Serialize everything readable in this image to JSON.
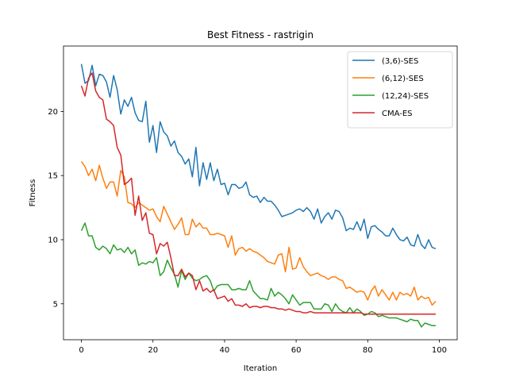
{
  "chart_data": {
    "type": "line",
    "title": "Best Fitness - rastrigin",
    "xlabel": "Iteration",
    "ylabel": "Fitness",
    "xlim": [
      -5,
      105
    ],
    "ylim": [
      2.2,
      25.1
    ],
    "xticks": [
      0,
      20,
      40,
      60,
      80,
      100
    ],
    "yticks": [
      5,
      10,
      15,
      20
    ],
    "grid": false,
    "legend_position": "upper right",
    "series": [
      {
        "name": "(3,6)-SES",
        "color": "#1f77b4",
        "values": [
          23.7,
          22.2,
          22.4,
          23.6,
          22.0,
          22.9,
          22.8,
          22.3,
          21.1,
          22.8,
          21.7,
          19.8,
          20.9,
          20.4,
          21.1,
          19.9,
          19.3,
          19.2,
          20.8,
          17.6,
          18.9,
          16.8,
          19.2,
          18.4,
          18.1,
          17.3,
          17.7,
          16.8,
          16.5,
          15.9,
          16.3,
          14.9,
          17.2,
          14.2,
          16.0,
          14.7,
          16.0,
          14.6,
          15.5,
          14.3,
          14.4,
          13.5,
          14.3,
          14.3,
          14.0,
          14.1,
          14.5,
          13.5,
          13.3,
          13.4,
          12.9,
          13.3,
          13.0,
          13.0,
          12.7,
          12.3,
          11.8,
          11.9,
          12.0,
          12.1,
          12.3,
          12.4,
          12.2,
          12.5,
          12.2,
          11.6,
          12.4,
          11.3,
          11.8,
          12.1,
          11.6,
          12.3,
          12.2,
          11.7,
          10.7,
          10.9,
          10.8,
          11.4,
          10.7,
          11.6,
          10.1,
          11.0,
          11.1,
          10.8,
          10.6,
          10.3,
          10.3,
          10.9,
          10.4,
          10.0,
          9.9,
          10.2,
          9.6,
          9.5,
          10.4,
          9.6,
          9.3,
          10.0,
          9.4,
          9.3
        ]
      },
      {
        "name": "(6,12)-SES",
        "color": "#ff7f0e",
        "values": [
          16.1,
          15.7,
          15.0,
          15.5,
          14.6,
          15.8,
          14.8,
          14.0,
          14.5,
          14.5,
          13.4,
          15.4,
          14.9,
          12.9,
          12.8,
          12.5,
          12.9,
          12.7,
          12.5,
          12.3,
          12.4,
          11.8,
          11.4,
          12.6,
          12.0,
          11.4,
          10.8,
          11.2,
          11.7,
          10.4,
          10.4,
          11.6,
          11.0,
          11.3,
          10.9,
          10.9,
          10.4,
          10.4,
          10.5,
          10.4,
          10.3,
          9.4,
          10.3,
          8.8,
          9.3,
          9.4,
          9.1,
          9.3,
          9.1,
          9.0,
          8.8,
          8.6,
          8.3,
          8.2,
          8.1,
          8.8,
          8.9,
          7.5,
          9.4,
          7.7,
          7.8,
          8.6,
          7.9,
          7.5,
          7.2,
          7.3,
          7.4,
          7.2,
          7.1,
          6.9,
          7.1,
          7.1,
          6.9,
          6.8,
          6.2,
          6.3,
          6.1,
          5.9,
          6.0,
          5.9,
          5.3,
          6.0,
          6.4,
          5.6,
          6.1,
          5.7,
          5.3,
          5.9,
          5.3,
          5.9,
          5.7,
          5.8,
          5.6,
          6.3,
          5.3,
          5.6,
          5.4,
          5.5,
          4.9,
          5.2
        ]
      },
      {
        "name": "(12,24)-SES",
        "color": "#2ca02c",
        "values": [
          10.7,
          11.3,
          10.3,
          10.3,
          9.4,
          9.2,
          9.5,
          9.3,
          8.9,
          9.6,
          9.2,
          9.3,
          9.0,
          9.4,
          8.9,
          9.2,
          8.0,
          8.2,
          8.1,
          8.3,
          8.2,
          8.6,
          7.2,
          7.5,
          8.4,
          7.8,
          7.3,
          6.3,
          7.6,
          6.9,
          7.4,
          7.0,
          6.8,
          6.9,
          7.1,
          7.2,
          6.8,
          6.0,
          6.4,
          6.5,
          6.5,
          6.5,
          6.1,
          6.1,
          6.2,
          6.1,
          6.1,
          6.8,
          6.0,
          5.7,
          5.4,
          5.4,
          5.3,
          6.2,
          5.6,
          5.9,
          5.7,
          5.4,
          5.0,
          5.7,
          5.3,
          4.9,
          5.1,
          5.1,
          5.1,
          4.6,
          4.6,
          4.6,
          5.0,
          4.9,
          4.4,
          5.0,
          4.6,
          4.4,
          4.3,
          4.7,
          4.3,
          4.6,
          4.4,
          4.1,
          4.2,
          4.4,
          4.3,
          4.0,
          4.1,
          4.0,
          3.9,
          3.9,
          3.9,
          3.8,
          3.7,
          3.6,
          3.8,
          3.7,
          3.7,
          3.2,
          3.5,
          3.4,
          3.3,
          3.3
        ]
      },
      {
        "name": "CMA-ES",
        "color": "#d62728",
        "values": [
          22.0,
          21.2,
          22.6,
          23.0,
          21.6,
          21.1,
          20.9,
          19.4,
          19.2,
          18.9,
          17.2,
          16.6,
          14.3,
          14.5,
          14.8,
          11.9,
          13.4,
          11.5,
          12.1,
          10.5,
          10.4,
          8.9,
          9.7,
          9.5,
          9.8,
          8.6,
          7.2,
          7.2,
          7.7,
          7.1,
          7.4,
          7.2,
          6.1,
          6.8,
          6.0,
          6.2,
          5.9,
          6.1,
          5.4,
          5.5,
          5.6,
          5.2,
          5.4,
          4.9,
          4.9,
          4.8,
          5.0,
          4.7,
          4.8,
          4.8,
          4.7,
          4.8,
          4.8,
          4.7,
          4.7,
          4.6,
          4.6,
          4.5,
          4.6,
          4.5,
          4.4,
          4.4,
          4.3,
          4.3,
          4.4,
          4.3,
          4.3,
          4.3,
          4.3,
          4.3,
          4.3,
          4.3,
          4.3,
          4.3,
          4.3,
          4.3,
          4.3,
          4.3,
          4.3,
          4.2,
          4.2,
          4.2,
          4.2,
          4.2,
          4.2,
          4.2,
          4.2,
          4.2,
          4.2,
          4.2,
          4.2,
          4.2,
          4.2,
          4.2,
          4.2,
          4.2,
          4.2,
          4.2,
          4.2,
          4.2
        ]
      }
    ]
  }
}
